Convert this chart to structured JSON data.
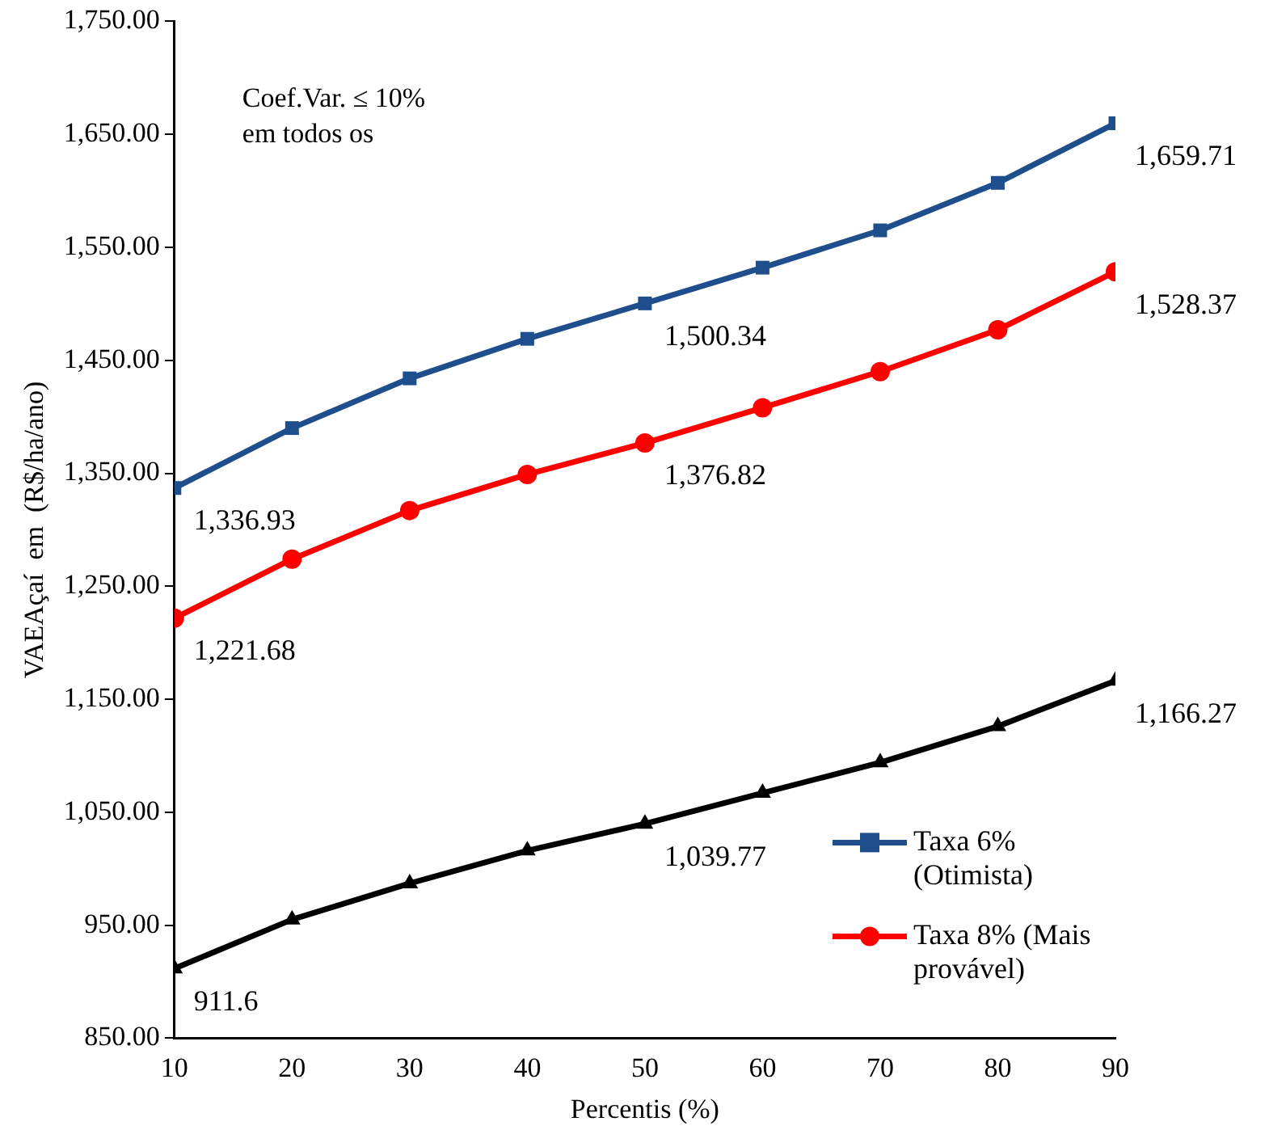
{
  "chart_data": {
    "type": "line",
    "xlabel": "Percentis (%)",
    "ylabel": "VAEAçaí  em  (R$/ha/ano)",
    "x": [
      10,
      20,
      30,
      40,
      50,
      60,
      70,
      80,
      90
    ],
    "xlim": [
      10,
      90
    ],
    "xticks": [
      10,
      20,
      30,
      40,
      50,
      60,
      70,
      80,
      90
    ],
    "ylim": [
      850,
      1750
    ],
    "yticks": [
      {
        "value": 850,
        "label": "850.00"
      },
      {
        "value": 950,
        "label": "950.00"
      },
      {
        "value": 1050,
        "label": "1,050.00"
      },
      {
        "value": 1150,
        "label": "1,150.00"
      },
      {
        "value": 1250,
        "label": "1,250.00"
      },
      {
        "value": 1350,
        "label": "1,350.00"
      },
      {
        "value": 1450,
        "label": "1,450.00"
      },
      {
        "value": 1550,
        "label": "1,550.00"
      },
      {
        "value": 1650,
        "label": "1,650.00"
      },
      {
        "value": 1750,
        "label": "1,750.00"
      }
    ],
    "grid": false,
    "legend": "bottom right",
    "line_style": "solid",
    "annotations": [
      "Coef.Var. ≤ 10%",
      "em todos os"
    ],
    "series": [
      {
        "name": "Taxa 6% (Otimista)",
        "color": "#1f4e8c",
        "marker": "square",
        "values": [
          1336.93,
          1390,
          1434,
          1469,
          1500.34,
          1532,
          1565,
          1607,
          1659.71
        ],
        "value_labels": [
          "1,336.93",
          null,
          null,
          null,
          "1,500.34",
          null,
          null,
          null,
          "1,659.71"
        ]
      },
      {
        "name": "Taxa 8% (Mais provável)",
        "color": "#ff0000",
        "marker": "circle",
        "values": [
          1221.68,
          1274,
          1317,
          1349,
          1376.82,
          1408,
          1440,
          1477,
          1528.37
        ],
        "value_labels": [
          "1,221.68",
          null,
          null,
          null,
          "1,376.82",
          null,
          null,
          null,
          "1,528.37"
        ]
      },
      {
        "color": "#000000",
        "marker": "triangle",
        "values": [
          911.6,
          955,
          987,
          1016,
          1039.77,
          1067,
          1094,
          1126,
          1166.27
        ],
        "value_labels": [
          "911.6",
          null,
          null,
          null,
          "1,039.77",
          null,
          null,
          null,
          "1,166.27"
        ]
      }
    ]
  }
}
